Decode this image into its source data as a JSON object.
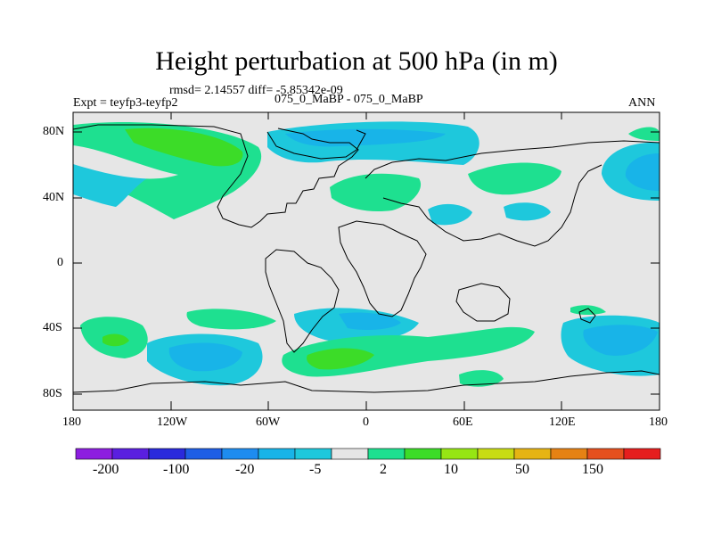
{
  "title": "Height perturbation at 500 hPa (in m)",
  "stats_line": "rmsd= 2.14557 diff= -5.85342e-09",
  "experiment": "Expt = teyfp3-teyfp2",
  "case_label": "075_0_MaBP - 075_0_MaBP",
  "season": "ANN",
  "lat_ticks": [
    "80N",
    "40N",
    "0",
    "40S",
    "80S"
  ],
  "lon_ticks": [
    "180",
    "120W",
    "60W",
    "0",
    "60E",
    "120E",
    "180"
  ],
  "colorbar": {
    "colors": [
      "#8d1ee0",
      "#5a1fe0",
      "#2a2adc",
      "#1e5ee6",
      "#1e8cf0",
      "#18b4e8",
      "#1ec8dc",
      "#e6e6e6",
      "#1ee090",
      "#3cdc28",
      "#96e614",
      "#c8dc14",
      "#e6b414",
      "#e68214",
      "#e6501e",
      "#e61e1e"
    ],
    "labels": [
      "-200",
      "-100",
      "-20",
      "-5",
      "2",
      "10",
      "50",
      "150"
    ]
  }
}
